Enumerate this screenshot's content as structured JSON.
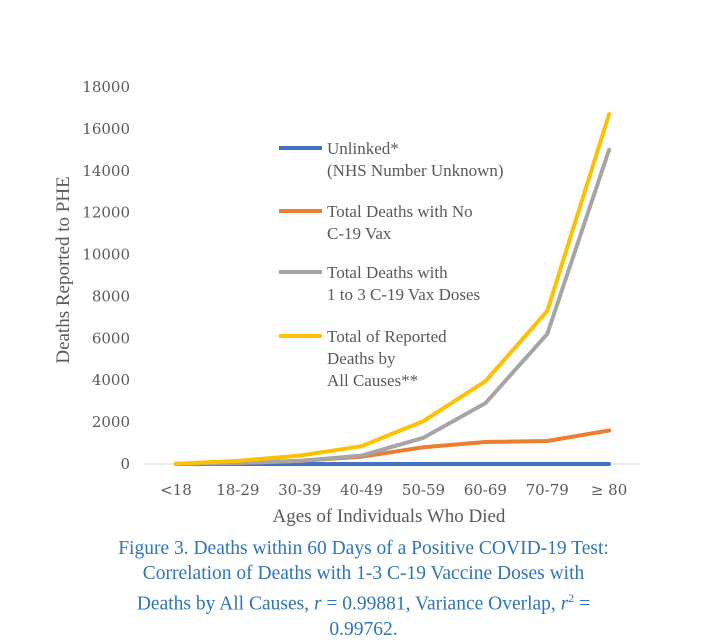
{
  "chart_data": {
    "type": "line",
    "categories": [
      "<18",
      "18-29",
      "30-39",
      "40-49",
      "50-59",
      "60-69",
      "70-79",
      "≥ 80"
    ],
    "ylabel": "Deaths Reported to PHE",
    "xlabel": "Ages of Individuals Who Died",
    "ylim": [
      0,
      18000
    ],
    "yticks": [
      0,
      2000,
      4000,
      6000,
      8000,
      10000,
      12000,
      14000,
      16000,
      18000
    ],
    "grid": false,
    "legend_position": "inside-left",
    "series": [
      {
        "name": "Unlinked* (NHS Number Unknown)",
        "legend_lines": [
          "Unlinked*",
          "(NHS Number Unknown)"
        ],
        "color": "#4472c4",
        "values": [
          0,
          0,
          0,
          0,
          0,
          0,
          0,
          0
        ]
      },
      {
        "name": "Total Deaths with No C-19 Vax",
        "legend_lines": [
          "Total Deaths with No",
          "C-19 Vax"
        ],
        "color": "#ed7d31",
        "values": [
          10,
          50,
          150,
          350,
          800,
          1050,
          1100,
          1600
        ]
      },
      {
        "name": "Total Deaths with 1 to 3 C-19 Vax Doses",
        "legend_lines": [
          "Total Deaths with",
          "1 to 3 C-19 Vax Doses"
        ],
        "color": "#a5a5a5",
        "values": [
          5,
          50,
          150,
          400,
          1250,
          2900,
          6200,
          15000
        ]
      },
      {
        "name": "Total of Reported Deaths by All Causes**",
        "legend_lines": [
          "Total of Reported",
          "Deaths by",
          "All Causes**"
        ],
        "color": "#ffc000",
        "values": [
          15,
          150,
          400,
          850,
          2050,
          3950,
          7300,
          16700
        ]
      }
    ]
  },
  "caption": {
    "line1": "Figure 3. Deaths within 60 Days of a Positive COVID-19 Test:",
    "line2": "Correlation of Deaths with 1-3 C-19 Vaccine Doses with",
    "line3_pre": "Deaths by All Causes, ",
    "r_symbol": "r",
    "line3_mid": " = 0.99881, Variance Overlap, ",
    "r2_symbol": "r",
    "r2_exp": "2",
    "line3_post": " =",
    "line4": "0.99762."
  }
}
